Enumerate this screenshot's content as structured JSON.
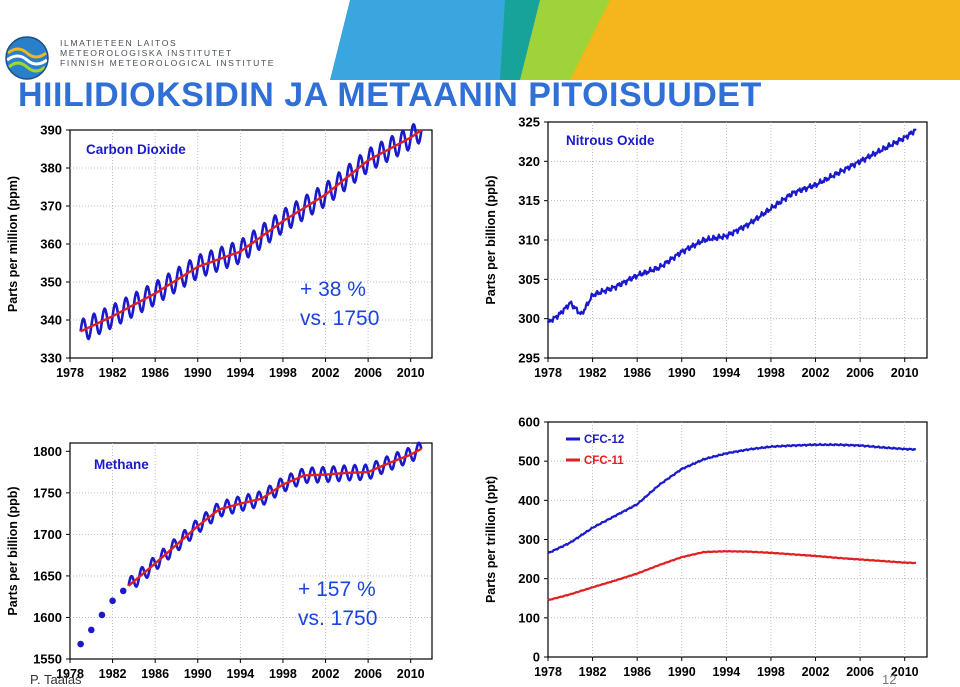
{
  "header": {
    "org_lines": [
      "ILMATIETEEN LAITOS",
      "METEOROLOGISKA INSTITUTET",
      "FINNISH METEOROLOGICAL INSTITUTE"
    ],
    "title": "HIILIDIOKSIDIN JA METAANIN PITOISUUDET",
    "title_color": "#2f6fd6",
    "banner_colors": [
      "#3aa6df",
      "#17a39a",
      "#9fd33a",
      "#f5b51c"
    ]
  },
  "footer": {
    "author": "P. Taalas",
    "page_number": "12"
  },
  "colors": {
    "blue": "#1a1acc",
    "red": "#e02020"
  },
  "chart_data": [
    {
      "type": "line",
      "title": "Carbon Dioxide",
      "ylabel": "Parts per million (ppm)",
      "xlabel": "",
      "ylim": [
        330,
        390
      ],
      "xlim": [
        1978,
        2012
      ],
      "yticks": [
        330,
        340,
        350,
        360,
        370,
        380,
        390
      ],
      "xticks": [
        1978,
        1982,
        1986,
        1990,
        1994,
        1998,
        2002,
        2006,
        2010
      ],
      "annotation": [
        "+ 38 %",
        "vs. 1750"
      ],
      "grid": true,
      "series": [
        {
          "color": "#1a1acc",
          "style": "seasonal",
          "amplitude": 3,
          "x": [
            1979,
            1982,
            1986,
            1990,
            1994,
            1998,
            2002,
            2006,
            2010,
            2011
          ],
          "values": [
            337,
            341,
            347,
            354,
            358,
            366,
            373,
            382,
            388,
            390
          ]
        },
        {
          "color": "#e02020",
          "style": "trend",
          "x": [
            1979,
            1982,
            1986,
            1990,
            1994,
            1998,
            2002,
            2006,
            2010,
            2011
          ],
          "values": [
            337,
            341,
            347,
            354,
            358,
            366,
            373,
            382,
            388,
            390
          ]
        }
      ]
    },
    {
      "type": "line",
      "title": "Nitrous Oxide",
      "ylabel": "Parts per billion (ppb)",
      "xlabel": "",
      "ylim": [
        295,
        325
      ],
      "xlim": [
        1978,
        2012
      ],
      "yticks": [
        295,
        300,
        305,
        310,
        315,
        320,
        325
      ],
      "xticks": [
        1978,
        1982,
        1986,
        1990,
        1994,
        1998,
        2002,
        2006,
        2010
      ],
      "grid": true,
      "series": [
        {
          "color": "#1a1acc",
          "style": "jitter",
          "amplitude": 0.4,
          "x": [
            1978,
            1979,
            1980,
            1981,
            1982,
            1984,
            1986,
            1988,
            1990,
            1992,
            1994,
            1996,
            1998,
            2000,
            2002,
            2004,
            2006,
            2008,
            2010,
            2011
          ],
          "values": [
            299.5,
            300.5,
            302,
            300.5,
            303,
            304,
            305.5,
            306.5,
            308.5,
            310,
            310.5,
            312,
            314,
            316,
            317,
            318.5,
            320,
            321.5,
            323,
            324
          ]
        }
      ]
    },
    {
      "type": "line",
      "title": "Methane",
      "ylabel": "Parts per billion (ppb)",
      "xlabel": "",
      "ylim": [
        1550,
        1810
      ],
      "xlim": [
        1978,
        2012
      ],
      "yticks": [
        1550,
        1600,
        1650,
        1700,
        1750,
        1800
      ],
      "xticks": [
        1978,
        1982,
        1986,
        1990,
        1994,
        1998,
        2002,
        2006,
        2010
      ],
      "annotation": [
        "+ 157 %",
        "vs. 1750"
      ],
      "grid": true,
      "series": [
        {
          "color": "#1a1acc",
          "style": "points",
          "x": [
            1979,
            1980,
            1981,
            1982,
            1983
          ],
          "values": [
            1568,
            1585,
            1603,
            1620,
            1632
          ]
        },
        {
          "color": "#1a1acc",
          "style": "seasonal",
          "amplitude": 9,
          "x": [
            1983.5,
            1986,
            1990,
            1992,
            1994,
            1996,
            1998,
            2000,
            2002,
            2004,
            2006,
            2008,
            2010,
            2011
          ],
          "values": [
            1638,
            1665,
            1710,
            1730,
            1737,
            1743,
            1760,
            1771,
            1772,
            1774,
            1775,
            1786,
            1796,
            1803
          ]
        },
        {
          "color": "#e02020",
          "style": "trend",
          "x": [
            1983.5,
            1986,
            1990,
            1992,
            1994,
            1996,
            1998,
            2000,
            2002,
            2004,
            2006,
            2008,
            2010,
            2011
          ],
          "values": [
            1638,
            1665,
            1710,
            1730,
            1737,
            1743,
            1760,
            1771,
            1772,
            1774,
            1775,
            1786,
            1796,
            1803
          ]
        }
      ]
    },
    {
      "type": "line",
      "title": "",
      "ylabel": "Parts per trillion (ppt)",
      "xlabel": "",
      "ylim": [
        0,
        600
      ],
      "xlim": [
        1978,
        2012
      ],
      "yticks": [
        0,
        100,
        200,
        300,
        400,
        500,
        600
      ],
      "xticks": [
        1978,
        1982,
        1986,
        1990,
        1994,
        1998,
        2002,
        2006,
        2010
      ],
      "grid": true,
      "legend_position": "top-left",
      "series": [
        {
          "name": "CFC-12",
          "color": "#1a1acc",
          "style": "jitter",
          "amplitude": 2,
          "x": [
            1978,
            1980,
            1982,
            1984,
            1986,
            1988,
            1990,
            1992,
            1994,
            1996,
            1998,
            2000,
            2002,
            2004,
            2006,
            2008,
            2010,
            2011
          ],
          "values": [
            265,
            292,
            330,
            360,
            390,
            440,
            480,
            505,
            520,
            530,
            537,
            540,
            542,
            542,
            540,
            535,
            531,
            530
          ]
        },
        {
          "name": "CFC-11",
          "color": "#e02020",
          "style": "jitter",
          "amplitude": 1,
          "x": [
            1978,
            1980,
            1982,
            1984,
            1986,
            1988,
            1990,
            1992,
            1994,
            1996,
            1998,
            2000,
            2002,
            2004,
            2006,
            2008,
            2010,
            2011
          ],
          "values": [
            145,
            160,
            178,
            195,
            213,
            235,
            255,
            268,
            270,
            269,
            266,
            262,
            258,
            253,
            249,
            245,
            241,
            240
          ]
        }
      ]
    }
  ]
}
